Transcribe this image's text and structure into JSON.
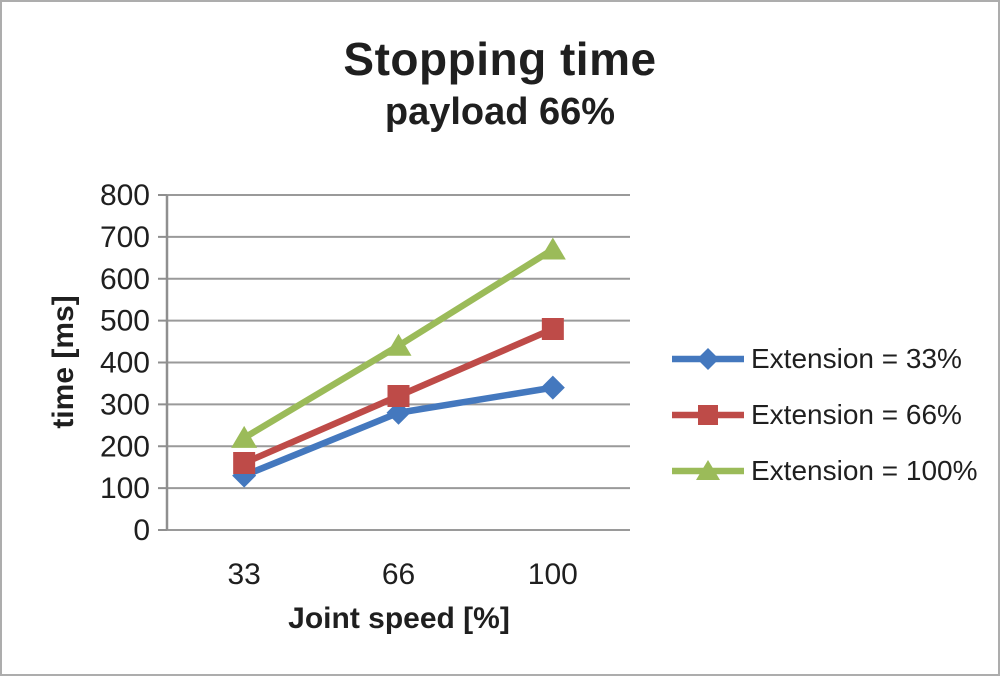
{
  "chart_data": {
    "type": "line",
    "title": "Stopping time",
    "subtitle": "payload 66%",
    "xlabel": "Joint speed [%]",
    "ylabel": "time [ms]",
    "categories": [
      "33",
      "66",
      "100"
    ],
    "ylim": [
      0,
      800
    ],
    "ytick_step": 100,
    "grid": true,
    "legend_position": "right",
    "series": [
      {
        "name": "Extension = 33%",
        "marker": "diamond",
        "color": "#4478BE",
        "values": [
          130,
          280,
          340
        ]
      },
      {
        "name": "Extension = 66%",
        "marker": "square",
        "color": "#BE4B48",
        "values": [
          160,
          320,
          480
        ]
      },
      {
        "name": "Extension = 100%",
        "marker": "triangle",
        "color": "#9BBB59",
        "values": [
          220,
          440,
          670
        ]
      }
    ],
    "colors": {
      "grid": "#9a9a9a",
      "axis": "#8f8f8f",
      "text": "#1f1f1f",
      "background": "#ffffff",
      "frame_border": "#adadad"
    }
  }
}
